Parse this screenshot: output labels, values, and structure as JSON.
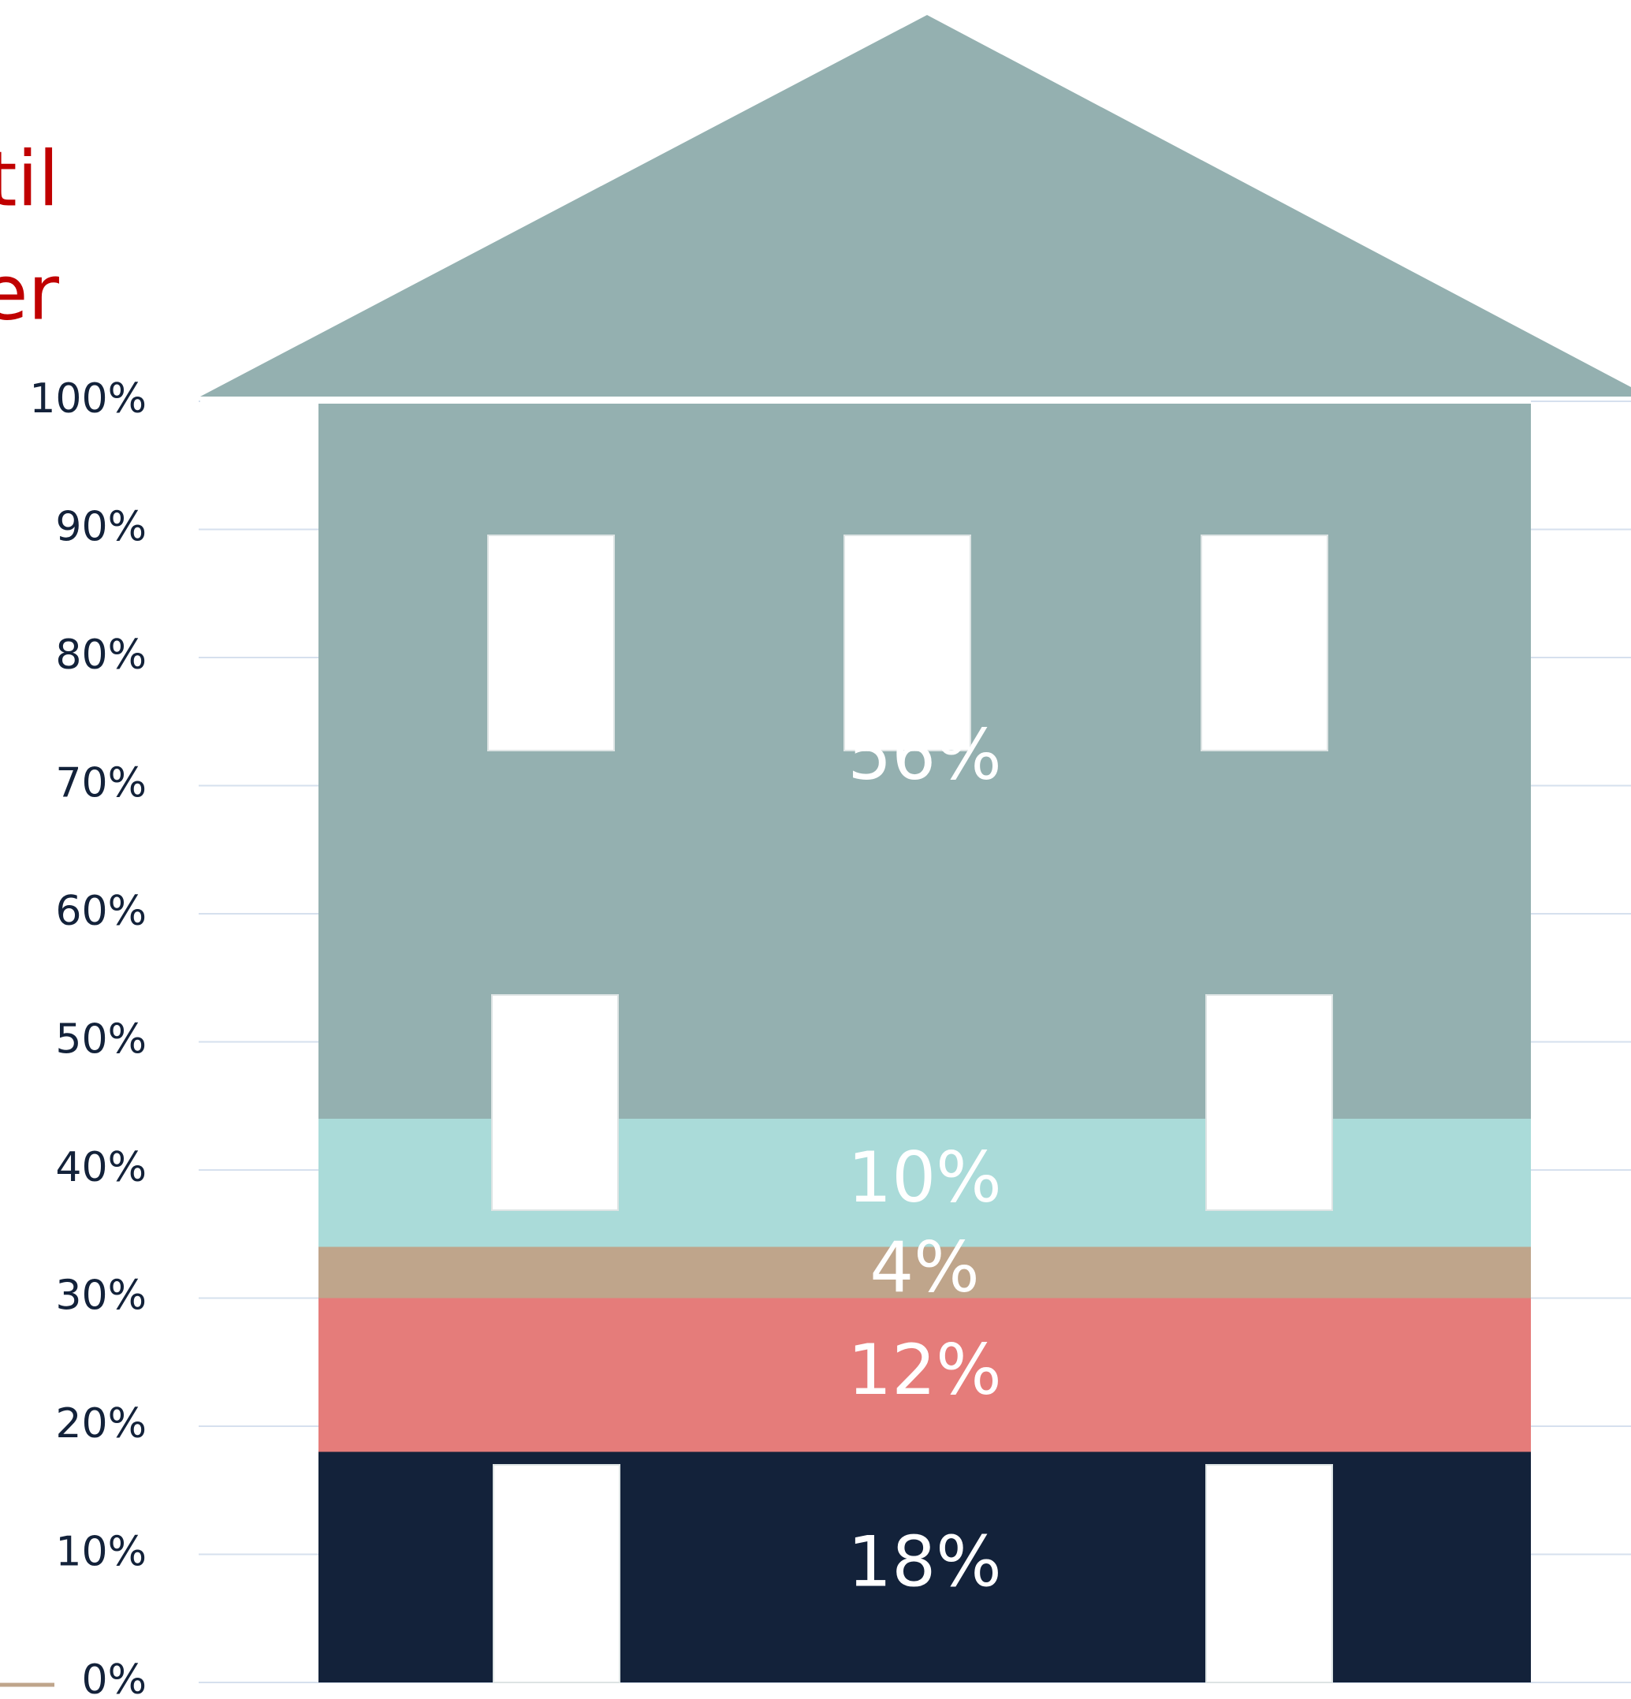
{
  "chart_data": {
    "type": "bar",
    "stacked": true,
    "annotations": [
      "til",
      "er"
    ],
    "categories": [
      null
    ],
    "series": [
      {
        "color": "#13223a",
        "values": [
          18
        ],
        "value_labels": [
          "18%"
        ]
      },
      {
        "color": "#e57c7a",
        "values": [
          12
        ],
        "value_labels": [
          "12%"
        ]
      },
      {
        "color": "#bfa58b",
        "values": [
          4
        ],
        "value_labels": [
          "4%"
        ]
      },
      {
        "color": "#aadbd9",
        "values": [
          10
        ],
        "value_labels": [
          "10%"
        ]
      },
      {
        "color": "#94b0b0",
        "values": [
          56
        ],
        "value_labels": [
          "56%"
        ]
      }
    ],
    "ylim": [
      0,
      100
    ],
    "yticks": [
      {
        "value": 0,
        "label": "0%"
      },
      {
        "value": 10,
        "label": "10%"
      },
      {
        "value": 20,
        "label": "20%"
      },
      {
        "value": 30,
        "label": "30%"
      },
      {
        "value": 40,
        "label": "40%"
      },
      {
        "value": 50,
        "label": "50%"
      },
      {
        "value": 60,
        "label": "60%"
      },
      {
        "value": 70,
        "label": "70%"
      },
      {
        "value": 80,
        "label": "80%"
      },
      {
        "value": 90,
        "label": "90%"
      },
      {
        "value": 100,
        "label": "100%"
      }
    ],
    "grid": true
  }
}
